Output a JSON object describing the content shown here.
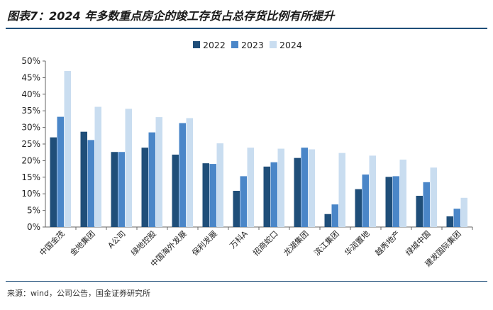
{
  "title": "图表7：2024 年多数重点房企的竣工存货占总存货比例有所提升",
  "source": "来源：wind，公司公告，国金证券研究所",
  "chart_data": {
    "type": "bar",
    "title": "",
    "xlabel": "",
    "ylabel": "",
    "ylim": [
      0,
      50
    ],
    "yticks": [
      "0%",
      "5%",
      "10%",
      "15%",
      "20%",
      "25%",
      "30%",
      "35%",
      "40%",
      "45%",
      "50%"
    ],
    "grid": false,
    "legend_position": "top-center",
    "categories": [
      "中国金茂",
      "金地集团",
      "A公司",
      "绿地控股",
      "中国海外发展",
      "保利发展",
      "万科A",
      "招商蛇口",
      "龙湖集团",
      "滨江集团",
      "华润置地",
      "越秀地产",
      "绿城中国",
      "建发国际集团"
    ],
    "series": [
      {
        "name": "2022",
        "color": "#1f4e79",
        "values": [
          27.0,
          28.7,
          22.6,
          23.9,
          21.8,
          19.2,
          10.9,
          18.2,
          20.8,
          3.9,
          11.4,
          15.1,
          9.4,
          3.2
        ]
      },
      {
        "name": "2023",
        "color": "#4a86c8",
        "values": [
          33.2,
          26.2,
          22.6,
          28.5,
          31.3,
          19.0,
          15.3,
          19.5,
          23.9,
          6.8,
          15.8,
          15.3,
          13.5,
          5.5
        ]
      },
      {
        "name": "2024",
        "color": "#c9ddf0",
        "values": [
          47.0,
          36.2,
          35.6,
          33.1,
          32.8,
          25.2,
          23.9,
          23.6,
          23.4,
          22.3,
          21.5,
          20.3,
          17.9,
          8.8
        ]
      }
    ]
  }
}
